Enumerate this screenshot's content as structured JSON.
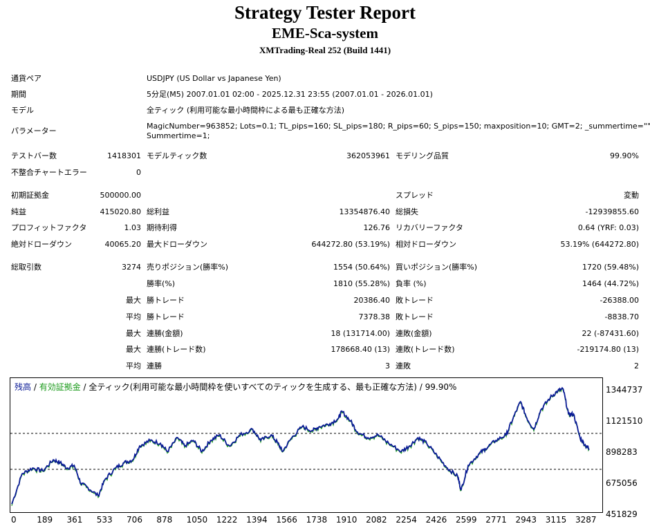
{
  "header": {
    "title": "Strategy Tester Report",
    "subtitle": "EME-Sca-system",
    "server": "XMTrading-Real 252 (Build 1441)"
  },
  "settings": [
    {
      "label": "通貨ペア",
      "value": "USDJPY (US Dollar vs Japanese Yen)"
    },
    {
      "label": "期間",
      "value": "5分足(M5) 2007.01.01 02:00 - 2025.12.31 23:55 (2007.01.01 - 2026.01.01)"
    },
    {
      "label": "モデル",
      "value": "全ティック (利用可能な最小時間枠による最も正確な方法)"
    },
    {
      "label": "パラメーター",
      "value": "MagicNumber=963852; Lots=0.1; TL_pips=160; SL_pips=180; R_pips=60; S_pips=150; maxposition=10; GMT=2; _summertime=\"\";",
      "value2": "Summertime=1;"
    }
  ],
  "stats": {
    "bars_label": "テストバー数",
    "bars_value": "1418301",
    "ticks_label": "モデルティック数",
    "ticks_value": "362053961",
    "quality_label": "モデリング品質",
    "quality_value": "99.90%",
    "mismatch_label": "不整合チャートエラー",
    "mismatch_value": "0",
    "deposit_label": "初期証拠金",
    "deposit_value": "500000.00",
    "spread_label": "スプレッド",
    "spread_value": "変動",
    "net_label": "純益",
    "net_value": "415020.80",
    "gross_profit_label": "総利益",
    "gross_profit_value": "13354876.40",
    "gross_loss_label": "総損失",
    "gross_loss_value": "-12939855.60",
    "pf_label": "プロフィットファクタ",
    "pf_value": "1.03",
    "expected_label": "期待利得",
    "expected_value": "126.76",
    "recovery_label": "リカバリーファクタ",
    "recovery_value": "0.64 (YRF: 0.03)",
    "abs_dd_label": "絶対ドローダウン",
    "abs_dd_value": "40065.20",
    "max_dd_label": "最大ドローダウン",
    "max_dd_value": "644272.80 (53.19%)",
    "rel_dd_label": "相対ドローダウン",
    "rel_dd_value": "53.19% (644272.80)",
    "trades_label": "総取引数",
    "trades_value": "3274",
    "short_label": "売りポジション(勝率%)",
    "short_value": "1554 (50.64%)",
    "long_label": "買いポジション(勝率%)",
    "long_value": "1720 (59.48%)",
    "win_label": "勝率(%)",
    "win_value": "1810 (55.28%)",
    "loss_label": "負率 (%)",
    "loss_value": "1464 (44.72%)",
    "largest": "最大",
    "average": "平均",
    "largest_win_label": "勝トレード",
    "largest_win_value": "20386.40",
    "largest_loss_label": "敗トレード",
    "largest_loss_value": "-26388.00",
    "avg_win_label": "勝トレード",
    "avg_win_value": "7378.38",
    "avg_loss_label": "敗トレード",
    "avg_loss_value": "-8838.70",
    "max_consec_wins_label": "連勝(金額)",
    "max_consec_wins_value": "18 (131714.00)",
    "max_consec_losses_label": "連敗(金額)",
    "max_consec_losses_value": "22 (-87431.60)",
    "max_consec_profit_label": "連勝(トレード数)",
    "max_consec_profit_value": "178668.40 (13)",
    "max_consec_loss_label": "連敗(トレード数)",
    "max_consec_loss_value": "-219174.80 (13)",
    "avg_consec_wins_label": "連勝",
    "avg_consec_wins_value": "3",
    "avg_consec_losses_label": "連敗",
    "avg_consec_losses_value": "2"
  },
  "chart_data": {
    "type": "line",
    "legend": {
      "balance": "残高",
      "sep1": " / ",
      "equity": "有効証拠金",
      "sep2": " / ",
      "model": "全ティック(利用可能な最小時間枠を使いすべてのティックを生成する、最も正確な方法) / 99.90%"
    },
    "colors": {
      "balance": "#0a1a96",
      "equity": "#1a9a1a"
    },
    "ylim": [
      451829,
      1400000
    ],
    "xlim": [
      0,
      3400
    ],
    "y_ticks": [
      "1344737",
      "1121510",
      "898283",
      "675056",
      "451829"
    ],
    "x_ticks": [
      "0",
      "189",
      "361",
      "533",
      "706",
      "878",
      "1050",
      "1222",
      "1394",
      "1566",
      "1738",
      "1910",
      "2082",
      "2254",
      "2426",
      "2599",
      "2771",
      "2943",
      "3115",
      "3287"
    ],
    "series": [
      {
        "values": [
          [
            0,
            500000
          ],
          [
            60,
            720000
          ],
          [
            120,
            760000
          ],
          [
            180,
            740000
          ],
          [
            240,
            820000
          ],
          [
            280,
            800000
          ],
          [
            320,
            760000
          ],
          [
            361,
            780000
          ],
          [
            400,
            650000
          ],
          [
            440,
            620000
          ],
          [
            500,
            560000
          ],
          [
            540,
            680000
          ],
          [
            600,
            760000
          ],
          [
            650,
            800000
          ],
          [
            700,
            820000
          ],
          [
            740,
            920000
          ],
          [
            800,
            960000
          ],
          [
            860,
            940000
          ],
          [
            900,
            880000
          ],
          [
            960,
            980000
          ],
          [
            1000,
            920000
          ],
          [
            1050,
            960000
          ],
          [
            1100,
            880000
          ],
          [
            1150,
            960000
          ],
          [
            1200,
            1000000
          ],
          [
            1260,
            920000
          ],
          [
            1320,
            1000000
          ],
          [
            1394,
            1040000
          ],
          [
            1440,
            960000
          ],
          [
            1500,
            1000000
          ],
          [
            1540,
            940000
          ],
          [
            1566,
            880000
          ],
          [
            1620,
            980000
          ],
          [
            1680,
            1060000
          ],
          [
            1738,
            1030000
          ],
          [
            1780,
            1060000
          ],
          [
            1840,
            1080000
          ],
          [
            1890,
            1120000
          ],
          [
            1910,
            1170000
          ],
          [
            1960,
            1100000
          ],
          [
            2000,
            1020000
          ],
          [
            2060,
            980000
          ],
          [
            2120,
            1000000
          ],
          [
            2180,
            940000
          ],
          [
            2254,
            880000
          ],
          [
            2300,
            920000
          ],
          [
            2350,
            980000
          ],
          [
            2400,
            940000
          ],
          [
            2460,
            850000
          ],
          [
            2520,
            760000
          ],
          [
            2580,
            700000
          ],
          [
            2599,
            600000
          ],
          [
            2640,
            780000
          ],
          [
            2700,
            860000
          ],
          [
            2740,
            900000
          ],
          [
            2800,
            960000
          ],
          [
            2860,
            1000000
          ],
          [
            2900,
            1120000
          ],
          [
            2943,
            1240000
          ],
          [
            2980,
            1120000
          ],
          [
            3020,
            1040000
          ],
          [
            3060,
            1180000
          ],
          [
            3115,
            1270000
          ],
          [
            3160,
            1320000
          ],
          [
            3190,
            1330000
          ],
          [
            3220,
            1150000
          ],
          [
            3250,
            1150000
          ],
          [
            3287,
            980000
          ],
          [
            3320,
            920000
          ],
          [
            3340,
            900000
          ]
        ]
      }
    ]
  }
}
